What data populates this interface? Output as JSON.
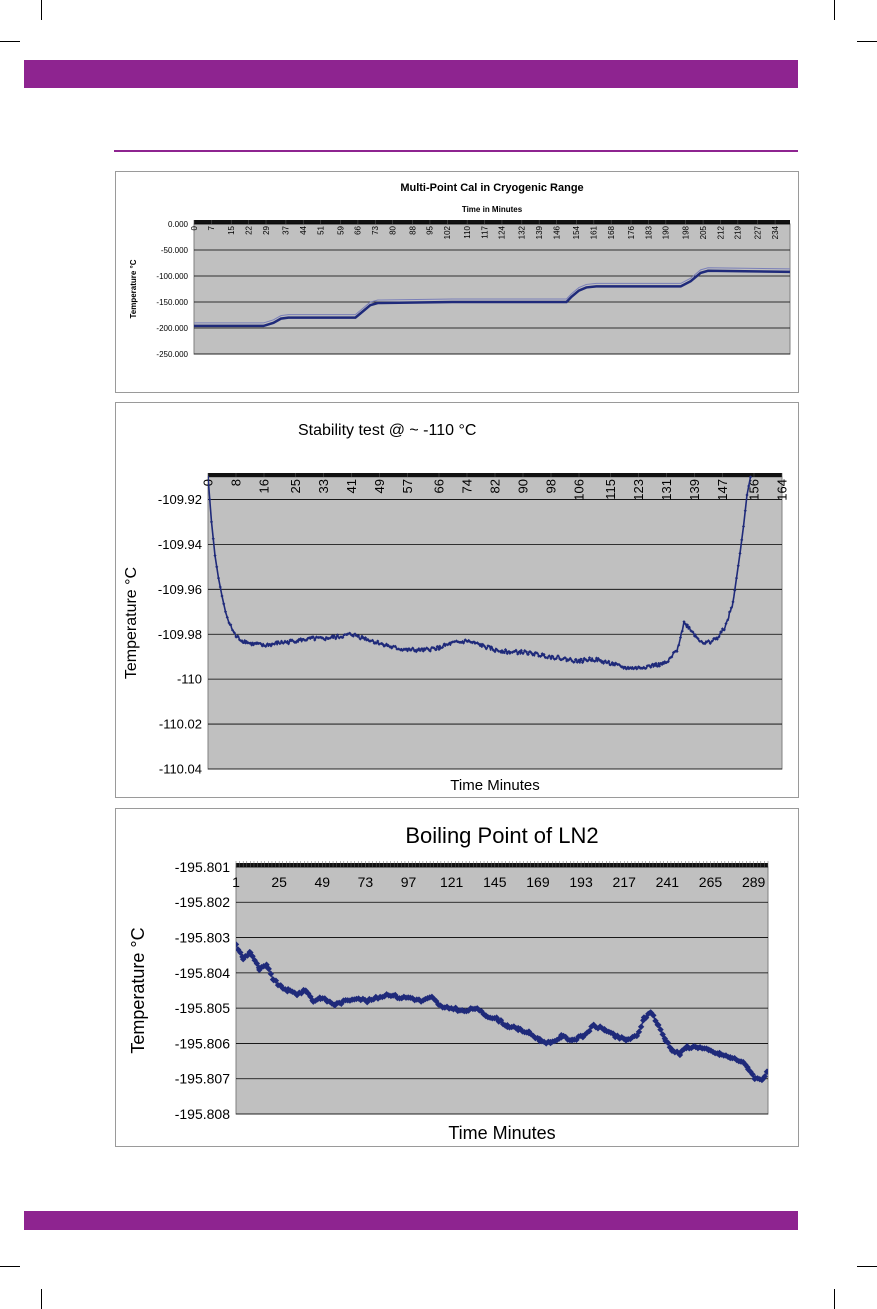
{
  "page": {
    "band_color": "#8e2490",
    "plot_bg": "#c0c0c0",
    "series_color": "#1f2a7a"
  },
  "chart_data": [
    {
      "type": "line",
      "title": "Multi-Point Cal in Cryogenic Range",
      "subtitle": "Time in Minutes",
      "xlabel": "",
      "ylabel": "Temperature °C",
      "x_ticks": [
        "0",
        "7",
        "15",
        "22",
        "29",
        "37",
        "44",
        "51",
        "59",
        "66",
        "73",
        "80",
        "88",
        "95",
        "102",
        "110",
        "117",
        "124",
        "132",
        "139",
        "146",
        "154",
        "161",
        "168",
        "176",
        "183",
        "190",
        "198",
        "205",
        "212",
        "219",
        "227",
        "234"
      ],
      "y_ticks": [
        "0.000",
        "-50.000",
        "-100.000",
        "-150.000",
        "-200.000",
        "-250.000"
      ],
      "xlim": [
        0,
        240
      ],
      "ylim": [
        -250,
        0
      ],
      "grid": true,
      "series": [
        {
          "x": [
            0,
            28,
            32,
            35,
            38,
            60,
            65,
            68,
            71,
            74,
            104,
            106,
            109,
            113,
            117,
            150,
            152,
            155,
            158,
            162,
            196,
            200,
            204,
            207,
            240
          ],
          "y": [
            -196,
            -196,
            -190,
            -182,
            -180,
            -180,
            -180,
            -168,
            -156,
            -152,
            -150,
            -150,
            -150,
            -150,
            -150,
            -150,
            -140,
            -128,
            -122,
            -120,
            -120,
            -110,
            -94,
            -90,
            -92
          ]
        }
      ]
    },
    {
      "type": "line",
      "title": "Stability test @ ~ -110 °C",
      "xlabel": "Time Minutes",
      "ylabel": "Temperature °C",
      "x_ticks": [
        "0",
        "8",
        "16",
        "25",
        "33",
        "41",
        "49",
        "57",
        "66",
        "74",
        "82",
        "90",
        "98",
        "106",
        "115",
        "123",
        "131",
        "139",
        "147",
        "156",
        "164"
      ],
      "y_ticks": [
        "-109.92",
        "-109.94",
        "-109.96",
        "-109.98",
        "-110",
        "-110.02",
        "-110.04"
      ],
      "xlim": [
        0,
        164
      ],
      "ylim": [
        -110.04,
        -109.91
      ],
      "grid": true,
      "series": [
        {
          "x": [
            0,
            1,
            2,
            3,
            4,
            5,
            6,
            7,
            8,
            10,
            12,
            16,
            20,
            25,
            30,
            33,
            38,
            41,
            45,
            49,
            53,
            57,
            62,
            66,
            70,
            74,
            78,
            82,
            86,
            90,
            94,
            98,
            102,
            106,
            110,
            115,
            119,
            123,
            127,
            131,
            134,
            136,
            138,
            140,
            142,
            144,
            146,
            148,
            150,
            151,
            152,
            153,
            154,
            155
          ],
          "y": [
            -109.91,
            -109.93,
            -109.945,
            -109.955,
            -109.963,
            -109.97,
            -109.975,
            -109.978,
            -109.981,
            -109.983,
            -109.984,
            -109.985,
            -109.984,
            -109.983,
            -109.982,
            -109.982,
            -109.981,
            -109.98,
            -109.982,
            -109.984,
            -109.986,
            -109.987,
            -109.987,
            -109.986,
            -109.984,
            -109.983,
            -109.985,
            -109.987,
            -109.988,
            -109.988,
            -109.989,
            -109.99,
            -109.991,
            -109.992,
            -109.991,
            -109.993,
            -109.995,
            -109.995,
            -109.994,
            -109.993,
            -109.987,
            -109.975,
            -109.978,
            -109.982,
            -109.984,
            -109.983,
            -109.981,
            -109.976,
            -109.966,
            -109.955,
            -109.944,
            -109.932,
            -109.918,
            -109.91
          ]
        }
      ]
    },
    {
      "type": "line",
      "title": "Boiling Point of LN2",
      "xlabel": "Time Minutes",
      "ylabel": "Temperature °C",
      "x_ticks": [
        "1",
        "25",
        "49",
        "73",
        "97",
        "121",
        "145",
        "169",
        "193",
        "217",
        "241",
        "265",
        "289"
      ],
      "y_ticks": [
        "-195.801",
        "-195.802",
        "-195.803",
        "-195.804",
        "-195.805",
        "-195.806",
        "-195.807",
        "-195.808"
      ],
      "xlim": [
        1,
        297
      ],
      "ylim": [
        -195.808,
        -195.801
      ],
      "grid": true,
      "series": [
        {
          "x": [
            1,
            5,
            9,
            14,
            18,
            22,
            26,
            30,
            35,
            40,
            44,
            48,
            52,
            56,
            62,
            68,
            74,
            80,
            86,
            92,
            98,
            104,
            110,
            116,
            122,
            128,
            134,
            140,
            146,
            152,
            158,
            164,
            170,
            176,
            182,
            188,
            194,
            200,
            206,
            212,
            218,
            224,
            228,
            232,
            236,
            240,
            244,
            248,
            252,
            258,
            264,
            270,
            276,
            282,
            286,
            290,
            294,
            297
          ],
          "y": [
            -195.8032,
            -195.8036,
            -195.8034,
            -195.8039,
            -195.8038,
            -195.8042,
            -195.8044,
            -195.8045,
            -195.8046,
            -195.8045,
            -195.8048,
            -195.8047,
            -195.8048,
            -195.8049,
            -195.8048,
            -195.8047,
            -195.8048,
            -195.8047,
            -195.8046,
            -195.8047,
            -195.8047,
            -195.8048,
            -195.8047,
            -195.805,
            -195.805,
            -195.8051,
            -195.805,
            -195.8052,
            -195.8053,
            -195.8055,
            -195.8056,
            -195.8057,
            -195.8059,
            -195.806,
            -195.8058,
            -195.8059,
            -195.8058,
            -195.8055,
            -195.8056,
            -195.8058,
            -195.8059,
            -195.8058,
            -195.8053,
            -195.8051,
            -195.8055,
            -195.8059,
            -195.8062,
            -195.8063,
            -195.8061,
            -195.8061,
            -195.8062,
            -195.8063,
            -195.8064,
            -195.8065,
            -195.8067,
            -195.807,
            -195.807,
            -195.8068
          ]
        }
      ]
    }
  ]
}
